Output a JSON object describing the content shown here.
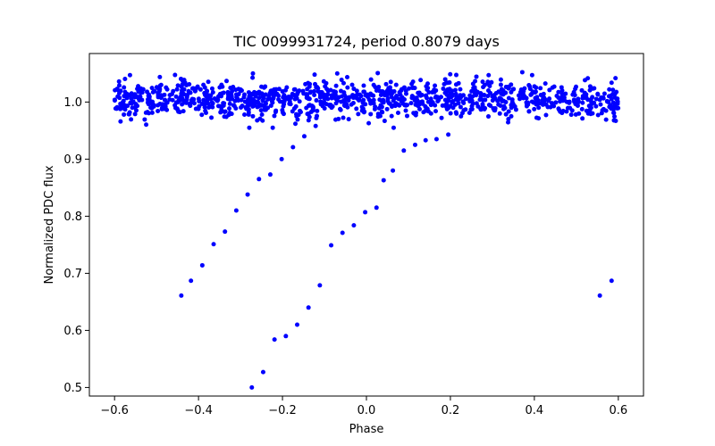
{
  "chart_data": {
    "type": "scatter",
    "title": "TIC 0099931724, period 0.8079 days",
    "xlabel": "Phase",
    "ylabel": "Normalized PDC flux",
    "xlim": [
      -0.66,
      0.66
    ],
    "ylim": [
      0.485,
      1.085
    ],
    "xticks": [
      -0.6,
      -0.4,
      -0.2,
      0.0,
      0.2,
      0.4,
      0.6
    ],
    "xtick_labels": [
      "−0.6",
      "−0.4",
      "−0.2",
      "0.0",
      "0.2",
      "0.4",
      "0.6"
    ],
    "yticks": [
      0.5,
      0.6,
      0.7,
      0.8,
      0.9,
      1.0
    ],
    "ytick_labels": [
      "0.5",
      "0.6",
      "0.7",
      "0.8",
      "0.9",
      "1.0"
    ],
    "grid": false,
    "legend": "none",
    "marker_color": "#0000ff",
    "baseline": {
      "x_range": [
        -0.6,
        0.6
      ],
      "flux_center": 1.005,
      "flux_scatter_range": [
        0.955,
        1.055
      ],
      "approx_points": 1100
    },
    "points": [
      {
        "x": -0.441,
        "y": 0.661
      },
      {
        "x": -0.418,
        "y": 0.687
      },
      {
        "x": -0.391,
        "y": 0.714
      },
      {
        "x": -0.364,
        "y": 0.751
      },
      {
        "x": -0.337,
        "y": 0.773
      },
      {
        "x": -0.31,
        "y": 0.81
      },
      {
        "x": -0.283,
        "y": 0.838
      },
      {
        "x": -0.256,
        "y": 0.865
      },
      {
        "x": -0.229,
        "y": 0.873
      },
      {
        "x": -0.202,
        "y": 0.9
      },
      {
        "x": -0.175,
        "y": 0.921
      },
      {
        "x": -0.148,
        "y": 0.94
      },
      {
        "x": -0.121,
        "y": 0.958
      },
      {
        "x": -0.273,
        "y": 0.5
      },
      {
        "x": -0.246,
        "y": 0.527
      },
      {
        "x": -0.219,
        "y": 0.584
      },
      {
        "x": -0.192,
        "y": 0.59
      },
      {
        "x": -0.165,
        "y": 0.61
      },
      {
        "x": -0.138,
        "y": 0.64
      },
      {
        "x": -0.111,
        "y": 0.679
      },
      {
        "x": -0.084,
        "y": 0.749
      },
      {
        "x": -0.057,
        "y": 0.771
      },
      {
        "x": -0.03,
        "y": 0.784
      },
      {
        "x": -0.003,
        "y": 0.807
      },
      {
        "x": 0.024,
        "y": 0.815
      },
      {
        "x": 0.041,
        "y": 0.863
      },
      {
        "x": 0.063,
        "y": 0.88
      },
      {
        "x": 0.089,
        "y": 0.915
      },
      {
        "x": 0.116,
        "y": 0.925
      },
      {
        "x": 0.141,
        "y": 0.933
      },
      {
        "x": 0.167,
        "y": 0.935
      },
      {
        "x": 0.195,
        "y": 0.943
      },
      {
        "x": 0.556,
        "y": 0.661
      },
      {
        "x": 0.584,
        "y": 0.687
      }
    ]
  }
}
